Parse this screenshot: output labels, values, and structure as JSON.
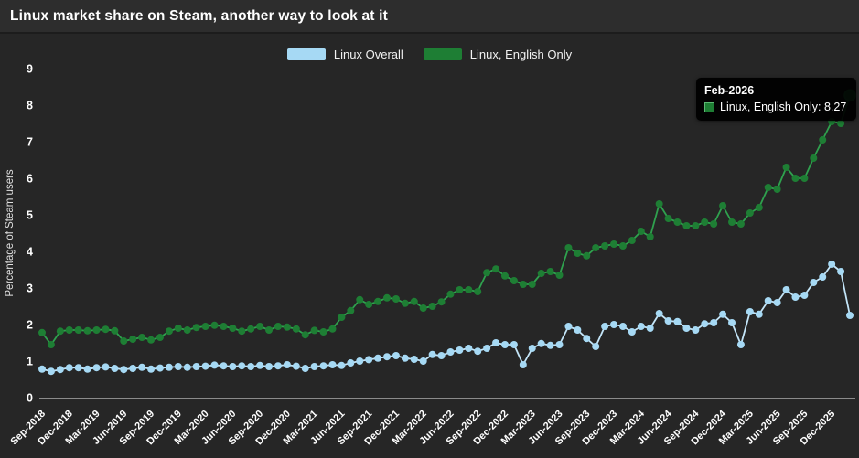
{
  "window": {
    "title": "Linux market share on Steam, another way to look at it"
  },
  "chart_data": {
    "type": "line",
    "title": "Linux market share on Steam, another way to look at it",
    "xlabel": "",
    "ylabel": "Percentage of Steam users",
    "ylim": [
      0,
      9
    ],
    "yticks": [
      "0",
      "1",
      "2",
      "3",
      "4",
      "5",
      "6",
      "7",
      "8",
      "9"
    ],
    "grid": false,
    "legend_position": "top-center",
    "x_start": "Sep-2018",
    "x_end": "Feb-2026",
    "n_points": 90,
    "x_tick_step_months": 3,
    "x_tick_labels": [
      "Sep-2018",
      "Dec-2018",
      "Mar-2019",
      "Jun-2019",
      "Sep-2019",
      "Dec-2019",
      "Mar-2020",
      "Jun-2020",
      "Sep-2020",
      "Dec-2020",
      "Mar-2021",
      "Jun-2021",
      "Sep-2021",
      "Dec-2021",
      "Mar-2022",
      "Jun-2022",
      "Sep-2022",
      "Dec-2022",
      "Mar-2023",
      "Jun-2023",
      "Sep-2023",
      "Dec-2023",
      "Mar-2024",
      "Jun-2024",
      "Sep-2024",
      "Dec-2024",
      "Mar-2025",
      "Jun-2025",
      "Sep-2025",
      "Dec-2025"
    ],
    "series": [
      {
        "name": "Linux Overall",
        "marker_color": "#a6d9f4",
        "line_color": "#c3e5f8",
        "values": [
          0.78,
          0.72,
          0.77,
          0.82,
          0.82,
          0.78,
          0.82,
          0.84,
          0.8,
          0.77,
          0.8,
          0.83,
          0.78,
          0.81,
          0.83,
          0.85,
          0.83,
          0.85,
          0.86,
          0.89,
          0.87,
          0.85,
          0.87,
          0.85,
          0.88,
          0.85,
          0.87,
          0.9,
          0.86,
          0.8,
          0.85,
          0.87,
          0.9,
          0.88,
          0.95,
          1.0,
          1.04,
          1.08,
          1.12,
          1.15,
          1.08,
          1.05,
          1.0,
          1.18,
          1.15,
          1.25,
          1.3,
          1.35,
          1.27,
          1.35,
          1.5,
          1.45,
          1.45,
          0.9,
          1.35,
          1.48,
          1.43,
          1.45,
          1.95,
          1.85,
          1.62,
          1.4,
          1.95,
          2.0,
          1.95,
          1.8,
          1.95,
          1.9,
          2.3,
          2.1,
          2.08,
          1.9,
          1.85,
          2.02,
          2.05,
          2.28,
          2.05,
          1.45,
          2.35,
          2.28,
          2.65,
          2.6,
          2.95,
          2.75,
          2.8,
          3.15,
          3.3,
          3.65,
          3.45,
          2.25
        ]
      },
      {
        "name": "Linux, English Only",
        "marker_color": "#1e7e34",
        "line_color": "#2fa14e",
        "values": [
          1.78,
          1.45,
          1.82,
          1.85,
          1.85,
          1.83,
          1.85,
          1.87,
          1.83,
          1.55,
          1.6,
          1.65,
          1.58,
          1.65,
          1.82,
          1.9,
          1.85,
          1.92,
          1.95,
          1.98,
          1.95,
          1.9,
          1.82,
          1.88,
          1.95,
          1.85,
          1.95,
          1.93,
          1.88,
          1.72,
          1.84,
          1.8,
          1.88,
          2.2,
          2.38,
          2.68,
          2.55,
          2.63,
          2.73,
          2.7,
          2.58,
          2.63,
          2.45,
          2.5,
          2.62,
          2.83,
          2.95,
          2.95,
          2.9,
          3.42,
          3.52,
          3.33,
          3.2,
          3.1,
          3.1,
          3.4,
          3.45,
          3.35,
          4.1,
          3.95,
          3.88,
          4.1,
          4.15,
          4.2,
          4.15,
          4.3,
          4.55,
          4.4,
          5.3,
          4.9,
          4.8,
          4.7,
          4.7,
          4.8,
          4.75,
          5.25,
          4.8,
          4.75,
          5.05,
          5.2,
          5.75,
          5.7,
          6.3,
          6.0,
          6.0,
          6.55,
          7.05,
          7.55,
          7.5,
          8.27
        ]
      }
    ],
    "highlight": {
      "series_index": 1,
      "point_index": 89,
      "label": "Feb-2026",
      "value": 8.27
    }
  },
  "tooltip": {
    "title": "Feb-2026",
    "text": "Linux, English Only: 8.27",
    "swatch_color": "#1e7e34"
  },
  "colors": {
    "header_bg": "#2d2d2d",
    "background": "#262626",
    "axis_text": "#ffffff",
    "axis_line": "#8b8b8b",
    "tooltip_bg": "#000000"
  }
}
